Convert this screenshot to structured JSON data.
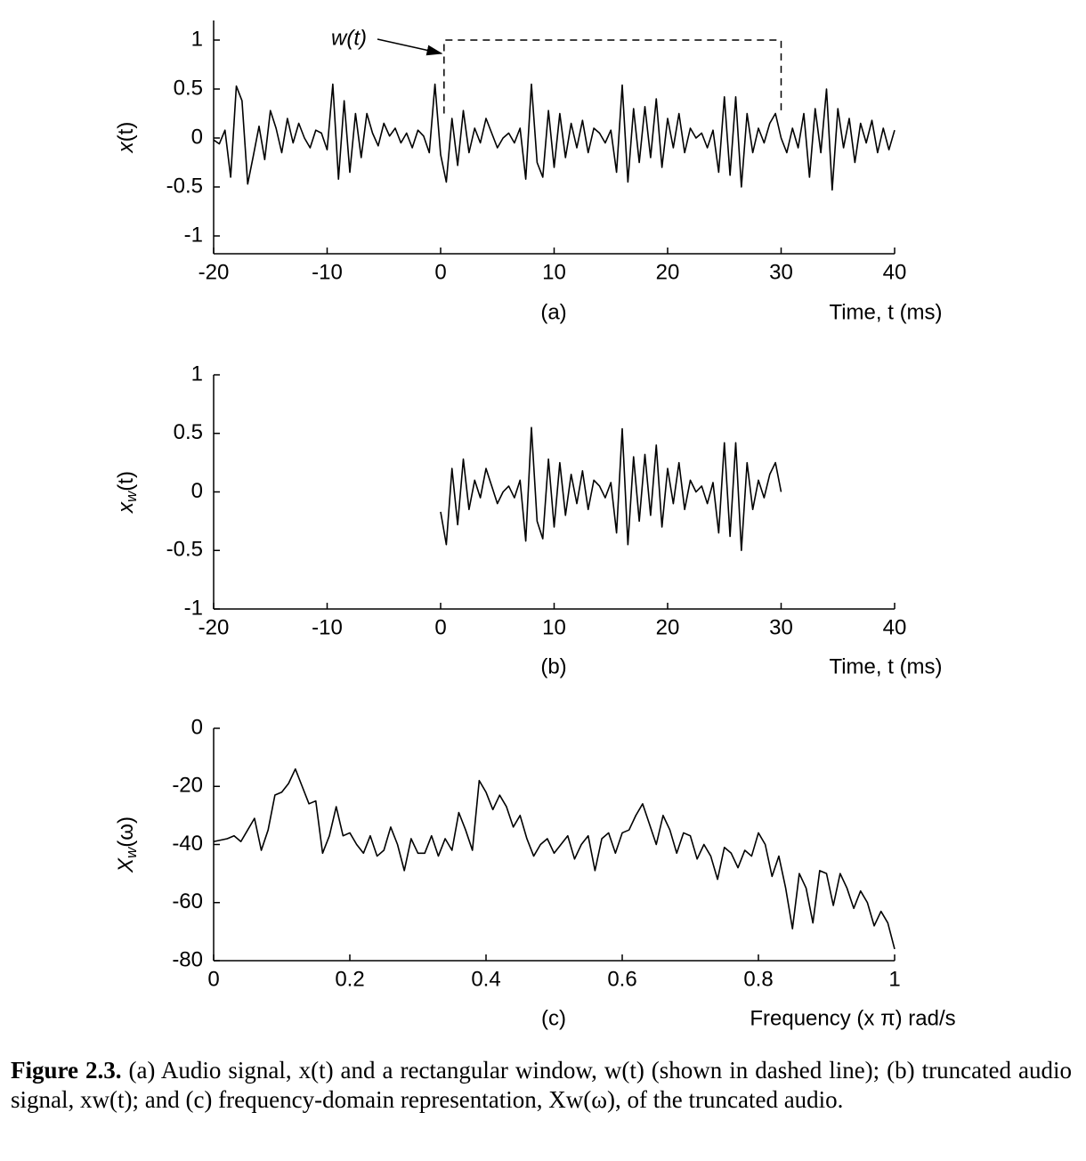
{
  "chart_data": [
    {
      "type": "line",
      "ylabel": [
        "x",
        "(t)"
      ],
      "xlabel": "Time, t (ms)",
      "sublabel": "(a)",
      "annotation": "w(t)",
      "xlim": [
        -20,
        40
      ],
      "ylim": [
        -1.2,
        1.2
      ],
      "xticks": [
        -20,
        -10,
        0,
        10,
        20,
        30,
        40
      ],
      "yticks": [
        -1,
        -0.5,
        0,
        0.5,
        1
      ],
      "color": "#000000",
      "x": [
        -20,
        -19.5,
        -19,
        -18.5,
        -18,
        -17.5,
        -17,
        -16.5,
        -16,
        -15.5,
        -15,
        -14.5,
        -14,
        -13.5,
        -13,
        -12.5,
        -12,
        -11.5,
        -11,
        -10.5,
        -10,
        -9.5,
        -9,
        -8.5,
        -8,
        -7.5,
        -7,
        -6.5,
        -6,
        -5.5,
        -5,
        -4.5,
        -4,
        -3.5,
        -3,
        -2.5,
        -2,
        -1.5,
        -1,
        -0.5,
        0,
        0.5,
        1,
        1.5,
        2,
        2.5,
        3,
        3.5,
        4,
        4.5,
        5,
        5.5,
        6,
        6.5,
        7,
        7.5,
        8,
        8.5,
        9,
        9.5,
        10,
        10.5,
        11,
        11.5,
        12,
        12.5,
        13,
        13.5,
        14,
        14.5,
        15,
        15.5,
        16,
        16.5,
        17,
        17.5,
        18,
        18.5,
        19,
        19.5,
        20,
        20.5,
        21,
        21.5,
        22,
        22.5,
        23,
        23.5,
        24,
        24.5,
        25,
        25.5,
        26,
        26.5,
        27,
        27.5,
        28,
        28.5,
        29,
        29.5,
        30,
        30.5,
        31,
        31.5,
        32,
        32.5,
        33,
        33.5,
        34,
        34.5,
        35,
        35.5,
        36,
        36.5,
        37,
        37.5,
        38,
        38.5,
        39,
        39.5,
        40
      ],
      "values": [
        -0.02,
        -0.06,
        0.08,
        -0.4,
        0.53,
        0.38,
        -0.47,
        -0.18,
        0.12,
        -0.22,
        0.28,
        0.1,
        -0.15,
        0.2,
        -0.05,
        0.15,
        0,
        -0.1,
        0.08,
        0.05,
        -0.12,
        0.55,
        -0.42,
        0.38,
        -0.35,
        0.25,
        -0.2,
        0.25,
        0.05,
        -0.08,
        0.15,
        0.02,
        0.1,
        -0.05,
        0.05,
        -0.1,
        0.08,
        0.02,
        -0.15,
        0.55,
        -0.17,
        -0.45,
        0.2,
        -0.28,
        0.28,
        -0.15,
        0.1,
        -0.05,
        0.2,
        0.05,
        -0.1,
        0,
        0.05,
        -0.05,
        0.1,
        -0.42,
        0.55,
        -0.25,
        -0.4,
        0.28,
        -0.3,
        0.25,
        -0.2,
        0.15,
        -0.1,
        0.18,
        -0.15,
        0.1,
        0.05,
        -0.05,
        0.08,
        -0.35,
        0.54,
        -0.45,
        0.3,
        -0.25,
        0.32,
        -0.2,
        0.4,
        -0.3,
        0.2,
        -0.1,
        0.25,
        -0.15,
        0.1,
        0,
        0.05,
        -0.1,
        0.08,
        -0.35,
        0.42,
        -0.38,
        0.42,
        -0.5,
        0.25,
        -0.15,
        0.1,
        -0.05,
        0.15,
        0.25,
        0,
        -0.15,
        0.1,
        -0.1,
        0.25,
        -0.4,
        0.3,
        -0.15,
        0.5,
        -0.53,
        0.3,
        -0.1,
        0.2,
        -0.25,
        0.15,
        -0.05,
        0.18,
        -0.15,
        0.1,
        -0.12,
        0.08
      ],
      "window": {
        "x": [
          0.3,
          0.3,
          30,
          30
        ],
        "values": [
          0.25,
          1,
          1,
          0.25
        ]
      }
    },
    {
      "type": "line",
      "ylabel": [
        "x",
        "w",
        "(t)"
      ],
      "xlabel": "Time, t (ms)",
      "sublabel": "(b)",
      "xlim": [
        -20,
        40
      ],
      "ylim": [
        -1,
        1
      ],
      "xticks": [
        -20,
        -10,
        0,
        10,
        20,
        30,
        40
      ],
      "yticks": [
        -1,
        -0.5,
        0,
        0.5,
        1
      ],
      "color": "#000000",
      "x": [
        0,
        0.5,
        1,
        1.5,
        2,
        2.5,
        3,
        3.5,
        4,
        4.5,
        5,
        5.5,
        6,
        6.5,
        7,
        7.5,
        8,
        8.5,
        9,
        9.5,
        10,
        10.5,
        11,
        11.5,
        12,
        12.5,
        13,
        13.5,
        14,
        14.5,
        15,
        15.5,
        16,
        16.5,
        17,
        17.5,
        18,
        18.5,
        19,
        19.5,
        20,
        20.5,
        21,
        21.5,
        22,
        22.5,
        23,
        23.5,
        24,
        24.5,
        25,
        25.5,
        26,
        26.5,
        27,
        27.5,
        28,
        28.5,
        29,
        29.5,
        30
      ],
      "values": [
        -0.17,
        -0.45,
        0.2,
        -0.28,
        0.28,
        -0.15,
        0.1,
        -0.05,
        0.2,
        0.05,
        -0.1,
        0,
        0.05,
        -0.05,
        0.1,
        -0.42,
        0.55,
        -0.25,
        -0.4,
        0.28,
        -0.3,
        0.25,
        -0.2,
        0.15,
        -0.1,
        0.18,
        -0.15,
        0.1,
        0.05,
        -0.05,
        0.08,
        -0.35,
        0.54,
        -0.45,
        0.3,
        -0.25,
        0.32,
        -0.2,
        0.4,
        -0.3,
        0.2,
        -0.1,
        0.25,
        -0.15,
        0.1,
        0,
        0.05,
        -0.1,
        0.08,
        -0.35,
        0.42,
        -0.38,
        0.42,
        -0.5,
        0.25,
        -0.15,
        0.1,
        -0.05,
        0.15,
        0.25,
        0
      ]
    },
    {
      "type": "line",
      "ylabel": [
        "X",
        "w",
        "(ω)"
      ],
      "xlabel": "Frequency (x π) rad/s",
      "sublabel": "(c)",
      "xlim": [
        0,
        1
      ],
      "ylim": [
        -80,
        0
      ],
      "xticks": [
        0,
        0.2,
        0.4,
        0.6,
        0.8,
        1
      ],
      "yticks": [
        -80,
        -60,
        -40,
        -20,
        0
      ],
      "color": "#000000",
      "x": [
        0,
        0.01,
        0.02,
        0.03,
        0.04,
        0.05,
        0.06,
        0.07,
        0.08,
        0.09,
        0.1,
        0.11,
        0.12,
        0.13,
        0.14,
        0.15,
        0.16,
        0.17,
        0.18,
        0.19,
        0.2,
        0.21,
        0.22,
        0.23,
        0.24,
        0.25,
        0.26,
        0.27,
        0.28,
        0.29,
        0.3,
        0.31,
        0.32,
        0.33,
        0.34,
        0.35,
        0.36,
        0.37,
        0.38,
        0.39,
        0.4,
        0.41,
        0.42,
        0.43,
        0.44,
        0.45,
        0.46,
        0.47,
        0.48,
        0.49,
        0.5,
        0.51,
        0.52,
        0.53,
        0.54,
        0.55,
        0.56,
        0.57,
        0.58,
        0.59,
        0.6,
        0.61,
        0.62,
        0.63,
        0.64,
        0.65,
        0.66,
        0.67,
        0.68,
        0.69,
        0.7,
        0.71,
        0.72,
        0.73,
        0.74,
        0.75,
        0.76,
        0.77,
        0.78,
        0.79,
        0.8,
        0.81,
        0.82,
        0.83,
        0.84,
        0.85,
        0.86,
        0.87,
        0.88,
        0.89,
        0.9,
        0.91,
        0.92,
        0.93,
        0.94,
        0.95,
        0.96,
        0.97,
        0.98,
        0.99,
        1
      ],
      "values": [
        -39,
        -38.5,
        -38,
        -37,
        -39,
        -35,
        -31,
        -42,
        -35,
        -23,
        -22,
        -19,
        -14,
        -20,
        -26,
        -25,
        -43,
        -37,
        -27,
        -37,
        -36,
        -40,
        -43,
        -37,
        -44,
        -42,
        -34,
        -40,
        -49,
        -38,
        -43,
        -43,
        -37,
        -44,
        -38,
        -42,
        -29,
        -35,
        -42,
        -18,
        -22,
        -28,
        -23,
        -27,
        -34,
        -30,
        -38,
        -44,
        -40,
        -38,
        -43,
        -40,
        -37,
        -45,
        -40,
        -37,
        -49,
        -38,
        -36,
        -43,
        -36,
        -35,
        -30,
        -26,
        -33,
        -40,
        -30,
        -35,
        -43,
        -36,
        -37,
        -45,
        -40,
        -44,
        -52,
        -41,
        -43,
        -48,
        -42,
        -44,
        -36,
        -40,
        -51,
        -44,
        -55,
        -69,
        -50,
        -55,
        -67,
        -49,
        -50,
        -61,
        -50,
        -55,
        -62,
        -56,
        -60,
        -68,
        -63,
        -67,
        -76
      ]
    }
  ],
  "caption": {
    "label": "Figure 2.3.",
    "text": "(a) Audio signal, x(t) and a rectangular window, w(t) (shown in dashed line); (b) truncated audio signal, xw(t); and (c) frequency-domain representation, Xw(ω), of the truncated audio."
  }
}
